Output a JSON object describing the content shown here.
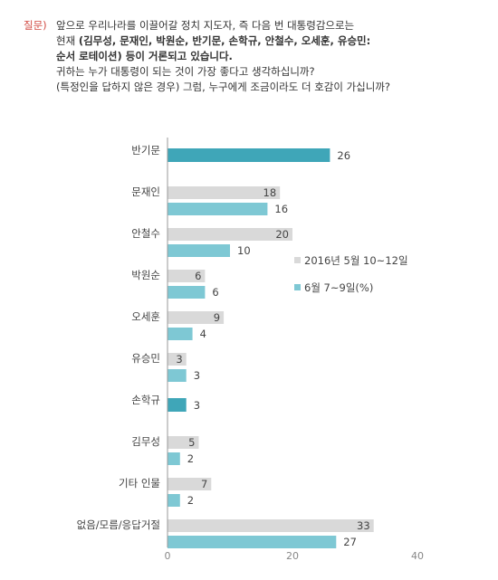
{
  "question": {
    "label": "질문)",
    "line1": "앞으로 우리나라를 이끌어갈 정치 지도자, 즉 다음 번 대통령감으로는",
    "line2_prefix": "현재 ",
    "line2_bold": "(김무성, 문재인, 박원순, 반기문, 손학규, 안철수, 오세훈, 유승민:",
    "line3_bold": "순서 로테이션)",
    "line3_rest": " 등이 거론되고 있습니다.",
    "line4": "귀하는 누가 대통령이 되는 것이 가장 좋다고 생각하십니까?",
    "line5": "(특정인을 답하지 않은 경우) 그럼, 누구에게 조금이라도 더 호감이 가십니까?"
  },
  "colors": {
    "series_may": "#d9d9d9",
    "series_june": "#7ec8d4",
    "highlight": "#3fa6b8",
    "axis": "#999999",
    "label_text": "#444444",
    "question_label": "#d24b43"
  },
  "chart_data": {
    "type": "bar",
    "orientation": "horizontal",
    "categories": [
      "반기문",
      "문재인",
      "안철수",
      "박원순",
      "오세훈",
      "유승민",
      "손학규",
      "김무성",
      "기타 인물",
      "없음/모름/응답거절"
    ],
    "series": [
      {
        "name": "2016년 5월 10~12일",
        "values": [
          null,
          18,
          20,
          6,
          9,
          3,
          null,
          5,
          7,
          33
        ]
      },
      {
        "name": "6월 7~9일(%)",
        "values": [
          26,
          16,
          10,
          6,
          4,
          3,
          3,
          2,
          2,
          27
        ]
      }
    ],
    "highlighted_categories": [
      "반기문",
      "손학규"
    ],
    "xlim": [
      0,
      40
    ],
    "xticks": [
      0,
      20,
      40
    ],
    "legend_position": "right",
    "grid": false
  }
}
